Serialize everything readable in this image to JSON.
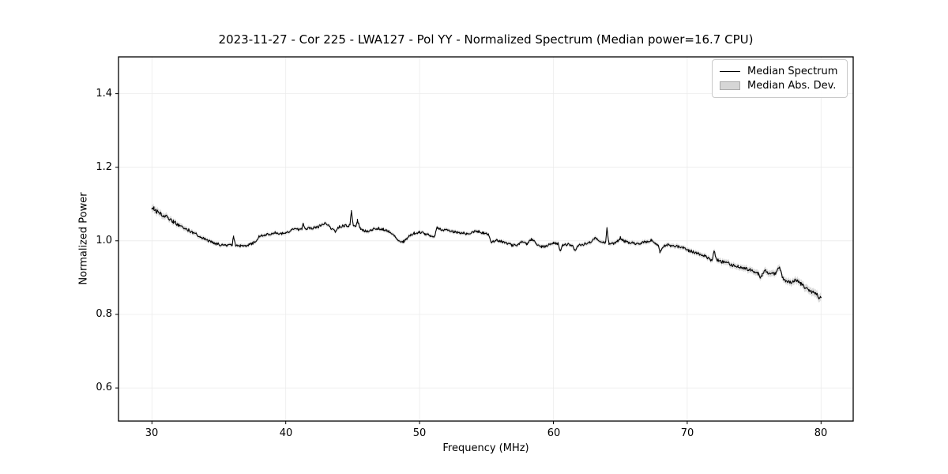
{
  "chart_data": {
    "type": "line",
    "title": "2023-11-27 - Cor 225 - LWA127 - Pol YY - Normalized Spectrum (Median power=16.7 CPU)",
    "xlabel": "Frequency (MHz)",
    "ylabel": "Normalized Power",
    "xlim": [
      27.5,
      82.4
    ],
    "ylim": [
      0.51,
      1.5
    ],
    "xticks": [
      30,
      40,
      50,
      60,
      70,
      80
    ],
    "yticks": [
      0.6,
      0.8,
      1.0,
      1.2,
      1.4
    ],
    "grid": true,
    "grid_color": "#dcdcdc",
    "frame_color": "#000000",
    "background": "#ffffff",
    "legend_position": "upper right",
    "noise": {
      "seed": 20231127,
      "step": 0.05,
      "amplitude_anchors": [
        [
          30,
          0.0065
        ],
        [
          31,
          0.0055
        ],
        [
          32.5,
          0.0045
        ],
        [
          34,
          0.0035
        ],
        [
          60,
          0.0035
        ],
        [
          70,
          0.004
        ],
        [
          80,
          0.0045
        ]
      ]
    },
    "series": [
      {
        "name": "Median Spectrum",
        "type": "line",
        "color": "#000000",
        "linewidth": 1.1,
        "anchors": [
          [
            30,
            1.084
          ],
          [
            30.15,
            1.088
          ],
          [
            30.3,
            1.08
          ],
          [
            30.5,
            1.082
          ],
          [
            30.7,
            1.073
          ],
          [
            31,
            1.066
          ],
          [
            31.3,
            1.06
          ],
          [
            31.6,
            1.052
          ],
          [
            32,
            1.044
          ],
          [
            32.4,
            1.036
          ],
          [
            32.8,
            1.028
          ],
          [
            33.2,
            1.02
          ],
          [
            33.6,
            1.012
          ],
          [
            34,
            1.003
          ],
          [
            34.4,
            0.997
          ],
          [
            34.8,
            0.992
          ],
          [
            35.2,
            0.989
          ],
          [
            35.6,
            0.987
          ],
          [
            36,
            0.988
          ],
          [
            36.1,
            1.013
          ],
          [
            36.25,
            0.988
          ],
          [
            36.6,
            0.986
          ],
          [
            37,
            0.987
          ],
          [
            37.4,
            0.991
          ],
          [
            37.7,
            0.997
          ],
          [
            38,
            1.012
          ],
          [
            38.4,
            1.016
          ],
          [
            38.8,
            1.019
          ],
          [
            39.2,
            1.023
          ],
          [
            39.5,
            1.017
          ],
          [
            40,
            1.022
          ],
          [
            40.4,
            1.029
          ],
          [
            40.8,
            1.031
          ],
          [
            41.2,
            1.031
          ],
          [
            41.3,
            1.048
          ],
          [
            41.45,
            1.032
          ],
          [
            41.8,
            1.034
          ],
          [
            42.2,
            1.036
          ],
          [
            42.6,
            1.041
          ],
          [
            43,
            1.048
          ],
          [
            43.35,
            1.035
          ],
          [
            43.7,
            1.025
          ],
          [
            44,
            1.038
          ],
          [
            44.4,
            1.041
          ],
          [
            44.8,
            1.042
          ],
          [
            44.9,
            1.08
          ],
          [
            45.05,
            1.044
          ],
          [
            45.25,
            1.04
          ],
          [
            45.35,
            1.056
          ],
          [
            45.55,
            1.034
          ],
          [
            45.8,
            1.028
          ],
          [
            46.1,
            1.026
          ],
          [
            46.5,
            1.031
          ],
          [
            46.9,
            1.034
          ],
          [
            47.3,
            1.031
          ],
          [
            47.7,
            1.026
          ],
          [
            48.1,
            1.014
          ],
          [
            48.4,
            1.0
          ],
          [
            48.8,
            0.998
          ],
          [
            49.2,
            1.012
          ],
          [
            49.6,
            1.021
          ],
          [
            50,
            1.023
          ],
          [
            50.4,
            1.019
          ],
          [
            50.8,
            1.013
          ],
          [
            51.1,
            1.01
          ],
          [
            51.3,
            1.038
          ],
          [
            51.5,
            1.031
          ],
          [
            52,
            1.029
          ],
          [
            52.5,
            1.025
          ],
          [
            53,
            1.021
          ],
          [
            53.5,
            1.02
          ],
          [
            54,
            1.024
          ],
          [
            54.4,
            1.026
          ],
          [
            54.8,
            1.021
          ],
          [
            55.15,
            1.016
          ],
          [
            55.35,
            0.996
          ],
          [
            55.7,
            1.002
          ],
          [
            56.1,
            0.999
          ],
          [
            56.5,
            0.993
          ],
          [
            56.9,
            0.988
          ],
          [
            57.3,
            0.989
          ],
          [
            57.65,
            0.999
          ],
          [
            58,
            0.991
          ],
          [
            58.35,
            1.004
          ],
          [
            58.7,
            0.993
          ],
          [
            59.1,
            0.984
          ],
          [
            59.5,
            0.986
          ],
          [
            60,
            0.995
          ],
          [
            60.35,
            0.992
          ],
          [
            60.5,
            0.974
          ],
          [
            60.7,
            0.988
          ],
          [
            61.1,
            0.99
          ],
          [
            61.45,
            0.988
          ],
          [
            61.6,
            0.973
          ],
          [
            61.8,
            0.986
          ],
          [
            62.2,
            0.99
          ],
          [
            62.7,
            0.995
          ],
          [
            63.1,
            1.006
          ],
          [
            63.5,
            0.998
          ],
          [
            63.9,
            0.996
          ],
          [
            64,
            1.036
          ],
          [
            64.15,
            0.992
          ],
          [
            64.5,
            0.992
          ],
          [
            64.8,
            1.0
          ],
          [
            65,
            1.008
          ],
          [
            65.3,
            0.999
          ],
          [
            65.7,
            0.995
          ],
          [
            66.1,
            0.993
          ],
          [
            66.5,
            0.993
          ],
          [
            66.9,
            0.997
          ],
          [
            67.3,
            1.001
          ],
          [
            67.6,
            0.996
          ],
          [
            67.85,
            0.986
          ],
          [
            67.95,
            0.971
          ],
          [
            68.15,
            0.984
          ],
          [
            68.5,
            0.989
          ],
          [
            68.9,
            0.986
          ],
          [
            69.3,
            0.984
          ],
          [
            69.7,
            0.98
          ],
          [
            70.1,
            0.973
          ],
          [
            70.5,
            0.97
          ],
          [
            70.9,
            0.964
          ],
          [
            71.3,
            0.958
          ],
          [
            71.7,
            0.951
          ],
          [
            71.85,
            0.944
          ],
          [
            72,
            0.972
          ],
          [
            72.2,
            0.948
          ],
          [
            72.6,
            0.943
          ],
          [
            73,
            0.94
          ],
          [
            73.4,
            0.934
          ],
          [
            73.8,
            0.93
          ],
          [
            74.2,
            0.927
          ],
          [
            74.6,
            0.922
          ],
          [
            75,
            0.916
          ],
          [
            75.3,
            0.911
          ],
          [
            75.45,
            0.897
          ],
          [
            75.6,
            0.907
          ],
          [
            75.8,
            0.921
          ],
          [
            76,
            0.912
          ],
          [
            76.3,
            0.913
          ],
          [
            76.6,
            0.91
          ],
          [
            76.9,
            0.928
          ],
          [
            77.1,
            0.902
          ],
          [
            77.35,
            0.889
          ],
          [
            77.7,
            0.887
          ],
          [
            78,
            0.893
          ],
          [
            78.2,
            0.892
          ],
          [
            78.5,
            0.883
          ],
          [
            78.8,
            0.873
          ],
          [
            79.1,
            0.866
          ],
          [
            79.4,
            0.86
          ],
          [
            79.7,
            0.853
          ],
          [
            79.85,
            0.846
          ],
          [
            80,
            0.849
          ]
        ]
      },
      {
        "name": "Median Abs. Dev.",
        "type": "band",
        "color": "#c9c9c9",
        "opacity": 0.65,
        "legend_fill": "#d6d6d6",
        "legend_edge": "#aaaaaa",
        "halfwidth_anchors": [
          [
            30,
            0.01
          ],
          [
            31,
            0.008
          ],
          [
            33,
            0.006
          ],
          [
            36,
            0.005
          ],
          [
            55,
            0.005
          ],
          [
            65,
            0.0055
          ],
          [
            70,
            0.006
          ],
          [
            73,
            0.0075
          ],
          [
            76,
            0.0085
          ],
          [
            78,
            0.009
          ],
          [
            80,
            0.011
          ]
        ]
      }
    ]
  }
}
